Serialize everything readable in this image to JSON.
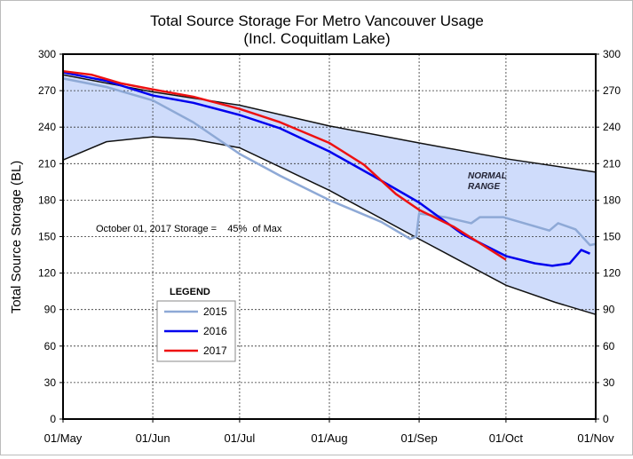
{
  "chart_data": {
    "type": "line",
    "title": "Total Source Storage For Metro Vancouver Usage",
    "subtitle": "(Incl. Coquitlam Lake)",
    "ylabel": "Total Source Storage  (BL)",
    "xlabel": "",
    "ylim": [
      0,
      300
    ],
    "yticks": [
      0,
      30,
      60,
      90,
      120,
      150,
      180,
      210,
      240,
      270,
      300
    ],
    "xlim_days": [
      0,
      184
    ],
    "xticks": [
      {
        "day": 0,
        "label": "01/May"
      },
      {
        "day": 31,
        "label": "01/Jun"
      },
      {
        "day": 61,
        "label": "01/Jul"
      },
      {
        "day": 92,
        "label": "01/Aug"
      },
      {
        "day": 123,
        "label": "01/Sep"
      },
      {
        "day": 153,
        "label": "01/Oct"
      },
      {
        "day": 184,
        "label": "01/Nov"
      }
    ],
    "grid": true,
    "annotation": "October 01, 2017 Storage =    45%  of Max",
    "range_label": [
      "NORMAL",
      "RANGE"
    ],
    "legend_title": "LEGEND",
    "range_upper": [
      [
        0,
        283
      ],
      [
        31,
        269
      ],
      [
        61,
        258
      ],
      [
        92,
        241
      ],
      [
        123,
        227
      ],
      [
        153,
        214
      ],
      [
        184,
        203
      ]
    ],
    "range_lower": [
      [
        0,
        213
      ],
      [
        15,
        228
      ],
      [
        31,
        232
      ],
      [
        45,
        230
      ],
      [
        61,
        223
      ],
      [
        92,
        188
      ],
      [
        123,
        148
      ],
      [
        153,
        110
      ],
      [
        170,
        96
      ],
      [
        184,
        86
      ]
    ],
    "series": [
      {
        "name": "2015",
        "color": "#8ea9d6",
        "values": [
          [
            0,
            280
          ],
          [
            15,
            273
          ],
          [
            31,
            262
          ],
          [
            45,
            244
          ],
          [
            61,
            218
          ],
          [
            75,
            200
          ],
          [
            92,
            180
          ],
          [
            110,
            162
          ],
          [
            120,
            148
          ],
          [
            122,
            150
          ],
          [
            123,
            169
          ],
          [
            132,
            166
          ],
          [
            141,
            161
          ],
          [
            144,
            166
          ],
          [
            152,
            166
          ],
          [
            168,
            155
          ],
          [
            171,
            161
          ],
          [
            177,
            156
          ],
          [
            182,
            143
          ],
          [
            184,
            144
          ]
        ]
      },
      {
        "name": "2016",
        "color": "#0000ee",
        "values": [
          [
            0,
            285
          ],
          [
            15,
            278
          ],
          [
            31,
            266
          ],
          [
            45,
            260
          ],
          [
            61,
            250
          ],
          [
            75,
            239
          ],
          [
            92,
            220
          ],
          [
            107,
            200
          ],
          [
            123,
            178
          ],
          [
            138,
            152
          ],
          [
            153,
            134
          ],
          [
            163,
            128
          ],
          [
            169,
            126
          ],
          [
            175,
            128
          ],
          [
            179,
            139
          ],
          [
            182,
            136
          ]
        ]
      },
      {
        "name": "2017",
        "color": "#ee1111",
        "values": [
          [
            0,
            286
          ],
          [
            10,
            283
          ],
          [
            20,
            276
          ],
          [
            31,
            271
          ],
          [
            45,
            265
          ],
          [
            61,
            255
          ],
          [
            75,
            244
          ],
          [
            92,
            227
          ],
          [
            104,
            209
          ],
          [
            115,
            185
          ],
          [
            123,
            172
          ],
          [
            135,
            158
          ],
          [
            145,
            143
          ],
          [
            153,
            131
          ]
        ]
      }
    ]
  }
}
